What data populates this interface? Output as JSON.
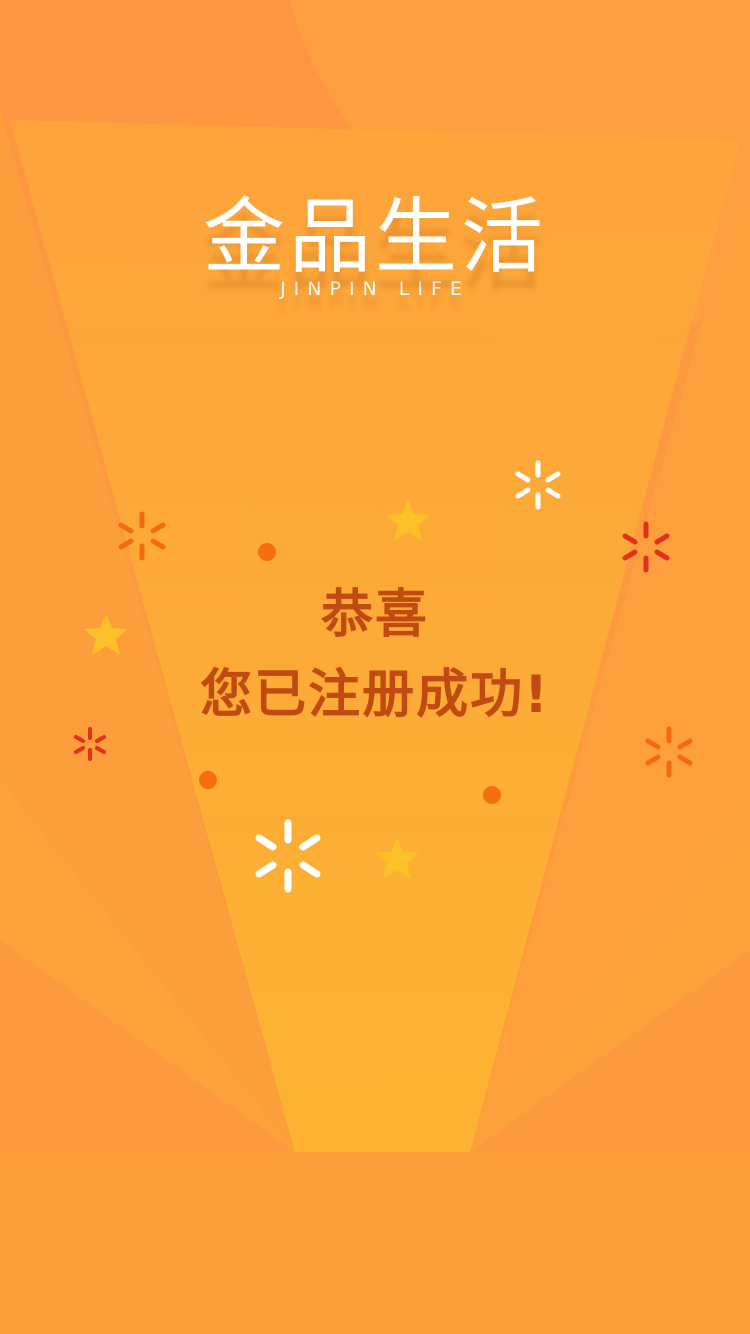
{
  "brand": {
    "name": "金品生活",
    "tagline": "JINPIN LIFE"
  },
  "message": {
    "line1": "恭喜",
    "line2": "您已注册成功!"
  },
  "colors": {
    "background": "#fd9b3b",
    "beam_center": "#fcb433",
    "message_text": "#c04a12",
    "dot": "#f56f10",
    "sparkle_red": "#e1301e",
    "sparkle_orange": "#f46a12",
    "sparkle_white": "#ffffff",
    "star": "#fdc128"
  }
}
